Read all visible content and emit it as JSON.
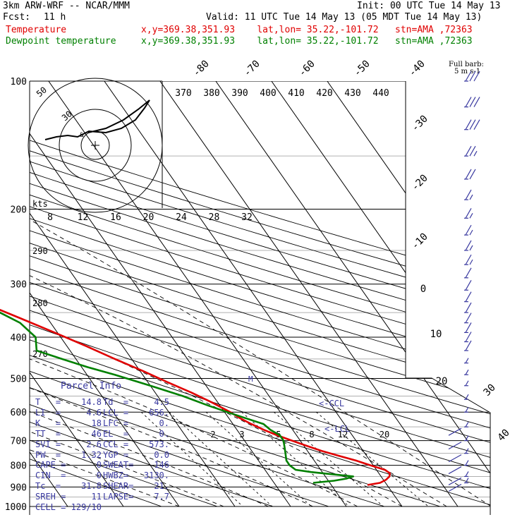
{
  "header": {
    "model": "3km ARW-WRF -- NCAR/MMM",
    "init": "Init: 00 UTC Tue 14 May 13",
    "fcst_label": "Fcst:",
    "fcst_value": "11 h",
    "valid": "Valid: 11 UTC Tue 14 May 13 (05 MDT Tue 14 May 13)",
    "temp_label": "Temperature",
    "temp_info": "x,y=369.38,351.93    lat,lon= 35.22,-101.72   stn=AMA ,72363",
    "dew_label": "Dewpoint temperature",
    "dew_info": "x,y=369.38,351.93    lat,lon= 35.22,-101.72   stn=AMA ,72363"
  },
  "colors": {
    "temperature": "#e00000",
    "dewpoint": "#008000",
    "wind": "#3a3aa0"
  },
  "chart_data": {
    "type": "line",
    "subtype": "skew-T log-P sounding",
    "pressure_levels": [
      "100",
      "200",
      "300",
      "400",
      "500",
      "600",
      "700",
      "800",
      "900",
      "1000"
    ],
    "pressure_range_hPa": [
      1000,
      100
    ],
    "temperature_ticks": [
      "-80",
      "-70",
      "-60",
      "-50",
      "-40",
      "-30",
      "-20",
      "-10",
      "0",
      "10",
      "20",
      "30",
      "40"
    ],
    "theta_labels": [
      "370",
      "380",
      "390",
      "400",
      "410",
      "420",
      "430",
      "440"
    ],
    "mixing_ratio_labels": [
      "2",
      "3",
      "5",
      "8",
      "12",
      "20"
    ],
    "wind_speed_ring_labels": [
      "8",
      "12",
      "16",
      "20",
      "24",
      "28",
      "32"
    ],
    "theta_side_labels": [
      "290",
      "280",
      "270"
    ],
    "hodograph_labels": [
      "kts",
      "50",
      "30"
    ],
    "annotations": {
      "ccl": "<-CCL",
      "lcl": "<-LCL",
      "m": "M",
      "barb_note_1": "Full barb:",
      "barb_note_2": "5 m s-1"
    },
    "series": [
      {
        "name": "Temperature",
        "pressure_hPa": [
          890,
          880,
          865,
          850,
          835,
          820,
          800,
          780,
          760,
          740,
          720,
          700,
          680,
          660,
          640,
          620,
          600,
          570,
          540,
          510,
          480,
          450,
          420,
          390,
          360,
          330,
          300,
          270,
          245,
          225,
          210,
          195,
          180,
          165,
          150,
          135,
          120,
          110,
          100
        ],
        "temperature_C": [
          16.5,
          19.0,
          20.5,
          21.5,
          22.0,
          21.5,
          19.5,
          17.5,
          15.0,
          12.5,
          10.5,
          8.5,
          6.5,
          4.8,
          3.3,
          2.0,
          1.0,
          -1.0,
          -3.5,
          -6.5,
          -9.5,
          -13.0,
          -16.5,
          -20.5,
          -25.0,
          -30.0,
          -35.5,
          -41.5,
          -47.0,
          -52.0,
          -55.5,
          -57.5,
          -58.0,
          -58.5,
          -61.0,
          -63.0,
          -64.0,
          -65.0,
          -65.5
        ]
      },
      {
        "name": "Dewpoint temperature",
        "pressure_hPa": [
          880,
          870,
          860,
          850,
          840,
          830,
          820,
          800,
          780,
          760,
          740,
          720,
          700,
          680,
          660,
          640,
          620,
          600,
          580,
          550,
          520,
          490,
          470,
          450,
          430,
          400,
          370,
          340,
          310,
          280,
          255,
          230,
          215,
          200,
          185,
          170,
          155,
          140,
          125,
          110,
          100
        ],
        "dewpoint_C": [
          7.0,
          11.0,
          13.5,
          15.0,
          11.5,
          8.0,
          5.5,
          5.0,
          5.0,
          5.5,
          6.0,
          6.5,
          7.0,
          7.0,
          6.0,
          5.5,
          3.0,
          0.5,
          -2.0,
          -5.5,
          -10.0,
          -15.0,
          -19.0,
          -22.5,
          -26.0,
          -24.5,
          -25.5,
          -29.0,
          -33.5,
          -39.5,
          -46.0,
          -53.5,
          -58.0,
          -61.0,
          -64.0,
          -66.0,
          -70.0,
          -75.0,
          -79.0,
          -82.0,
          -83.0
        ]
      }
    ],
    "wind_barbs": {
      "pressure_hPa": [
        100,
        115,
        130,
        150,
        170,
        190,
        210,
        230,
        250,
        270,
        290,
        310,
        330,
        350,
        370,
        390,
        410,
        430,
        460,
        490,
        520,
        560,
        600,
        650,
        700,
        750,
        800,
        850,
        880
      ],
      "speed_ms": [
        15,
        15,
        15,
        12,
        10,
        7,
        7,
        7,
        7,
        7,
        5,
        5,
        5,
        5,
        5,
        5,
        5,
        5,
        4,
        4,
        4,
        3,
        2,
        1,
        1,
        1,
        1,
        1,
        1
      ]
    }
  },
  "parcel_info": {
    "title": "Parcel Info",
    "left": [
      {
        "label": "T   =",
        "value": "14.8"
      },
      {
        "label": "LI  =",
        "value": "4.6"
      },
      {
        "label": "K   =",
        "value": "18"
      },
      {
        "label": "TT  =",
        "value": "46"
      },
      {
        "label": "SVI =",
        "value": "2.6"
      },
      {
        "label": "PW  =",
        "value": "1.32"
      },
      {
        "label": "CAPE =",
        "value": "0"
      },
      {
        "label": "CIN  =",
        "value": "0"
      },
      {
        "label": "Tc  =",
        "value": "31.8"
      },
      {
        "label": "SREH =",
        "value": "11"
      },
      {
        "label": "CELL =",
        "value": "129/10"
      }
    ],
    "right": [
      {
        "label": "Td  =",
        "value": "4.5"
      },
      {
        "label": "LCL =",
        "value": "656."
      },
      {
        "label": "LFC =",
        "value": "0."
      },
      {
        "label": "EL  =",
        "value": "0."
      },
      {
        "label": "CCL =",
        "value": "573."
      },
      {
        "label": "YGP =",
        "value": "0.0"
      },
      {
        "label": "SWEAT=",
        "value": "146"
      },
      {
        "label": "HWBZ=",
        "value": "3130."
      },
      {
        "label": "SHEAR=",
        "value": "21."
      },
      {
        "label": "LAPSE=",
        "value": "7.7"
      }
    ]
  }
}
